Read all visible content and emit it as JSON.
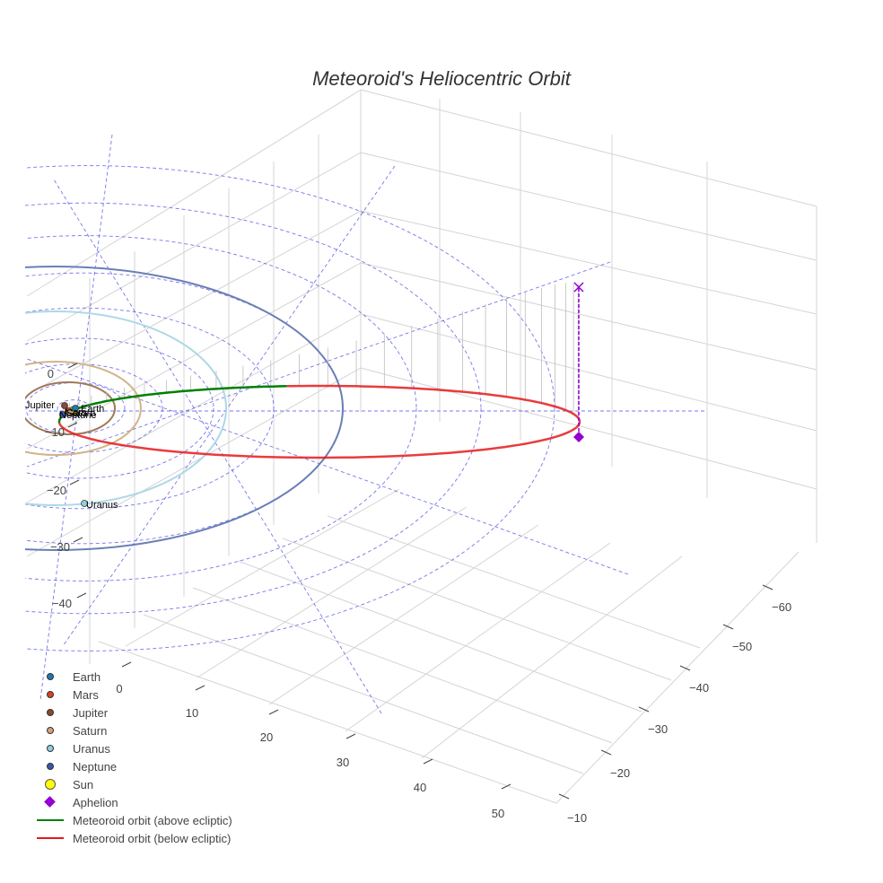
{
  "chart_data": {
    "type": "scatter3d",
    "title": "Meteoroid's Heliocentric Orbit",
    "x_axis": {
      "ticks": [
        "0",
        "10",
        "20",
        "30",
        "40",
        "50"
      ],
      "range": [
        -10,
        55
      ]
    },
    "y_axis": {
      "ticks": [
        "−10",
        "−20",
        "−30",
        "−40",
        "−50",
        "−60"
      ],
      "range": [
        -65,
        -5
      ]
    },
    "z_axis": {
      "ticks": [
        "0",
        "−10",
        "−20",
        "−30",
        "−40"
      ],
      "range": [
        -45,
        5
      ]
    },
    "planets": [
      {
        "name": "Earth",
        "color": "#1f77b4",
        "orbit_radius_au": 1.0
      },
      {
        "name": "Mars",
        "color": "#d6451e",
        "orbit_radius_au": 1.52
      },
      {
        "name": "Jupiter",
        "color": "#8b4a2b",
        "orbit_radius_au": 5.2
      },
      {
        "name": "Saturn",
        "color": "#d2a07a",
        "orbit_radius_au": 9.5
      },
      {
        "name": "Uranus",
        "color": "#8ecfe0",
        "orbit_radius_au": 19.2
      },
      {
        "name": "Neptune",
        "color": "#3a56a8",
        "orbit_radius_au": 30.1
      }
    ],
    "sun": {
      "name": "Sun",
      "color": "#ffff00"
    },
    "aphelion": {
      "name": "Aphelion",
      "color": "#9400d3"
    },
    "meteoroid_orbit": {
      "above_label": "Meteoroid orbit (above ecliptic)",
      "below_label": "Meteoroid orbit (below ecliptic)",
      "above_color": "#008000",
      "below_color": "#e41a1c"
    },
    "orbit_colors": {
      "jupiter": "#a07858",
      "saturn": "#d2b48c",
      "uranus": "#add8e6",
      "neptune": "#6a7fb5",
      "guides": "#4a4ae6"
    },
    "legend_position": "bottom-left"
  },
  "legend": [
    {
      "label": "Earth",
      "color": "#1f77b4",
      "kind": "dot"
    },
    {
      "label": "Mars",
      "color": "#d6451e",
      "kind": "dot"
    },
    {
      "label": "Jupiter",
      "color": "#8b4a2b",
      "kind": "dot"
    },
    {
      "label": "Saturn",
      "color": "#d2a07a",
      "kind": "dot"
    },
    {
      "label": "Uranus",
      "color": "#8ecfe0",
      "kind": "dot"
    },
    {
      "label": "Neptune",
      "color": "#3a56a8",
      "kind": "dot"
    },
    {
      "label": "Sun",
      "color": "#ffff00",
      "kind": "bigdot"
    },
    {
      "label": "Aphelion",
      "color": "#9400d3",
      "kind": "diamond"
    },
    {
      "label": "Meteoroid orbit (above ecliptic)",
      "color": "#008000",
      "kind": "line"
    },
    {
      "label": "Meteoroid orbit (below ecliptic)",
      "color": "#e41a1c",
      "kind": "line"
    }
  ]
}
